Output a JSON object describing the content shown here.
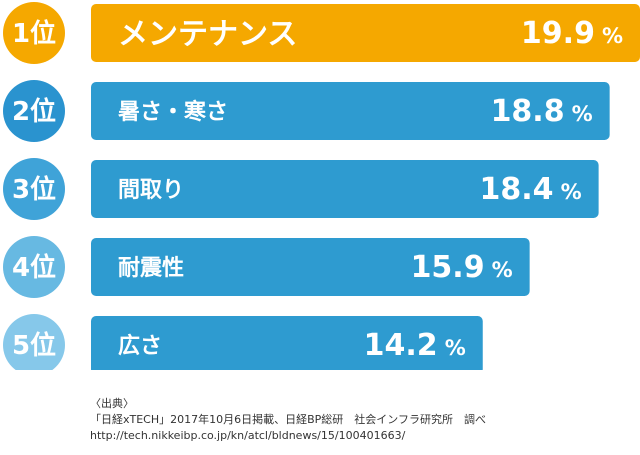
{
  "chart_data": {
    "type": "bar",
    "orientation": "horizontal",
    "categories": [
      "メンテナンス",
      "暑さ・寒さ",
      "間取り",
      "耐震性",
      "広さ"
    ],
    "ranks": [
      "1位",
      "2位",
      "3位",
      "4位",
      "5位"
    ],
    "values": [
      19.9,
      18.8,
      18.4,
      15.9,
      14.2
    ],
    "value_labels": [
      "19.9",
      "18.8",
      "18.4",
      "15.9",
      "14.2"
    ],
    "unit": "%",
    "xlim": [
      0,
      19.9
    ],
    "grid": false,
    "legend": "none",
    "colors": {
      "highlight_bar": "#F5A800",
      "bar": "#2E9BD0",
      "rank_circles": [
        "#F5A800",
        "#2A93CF",
        "#3FA3D8",
        "#67B9E2",
        "#86C8EA"
      ]
    }
  },
  "source": {
    "heading": "〈出典〉",
    "line1": "「日経xTECH」2017年10月6日掲載、日経BP総研　社会インフラ研究所　調べ",
    "line2": "http://tech.nikkeibp.co.jp/kn/atcl/bldnews/15/100401663/"
  }
}
